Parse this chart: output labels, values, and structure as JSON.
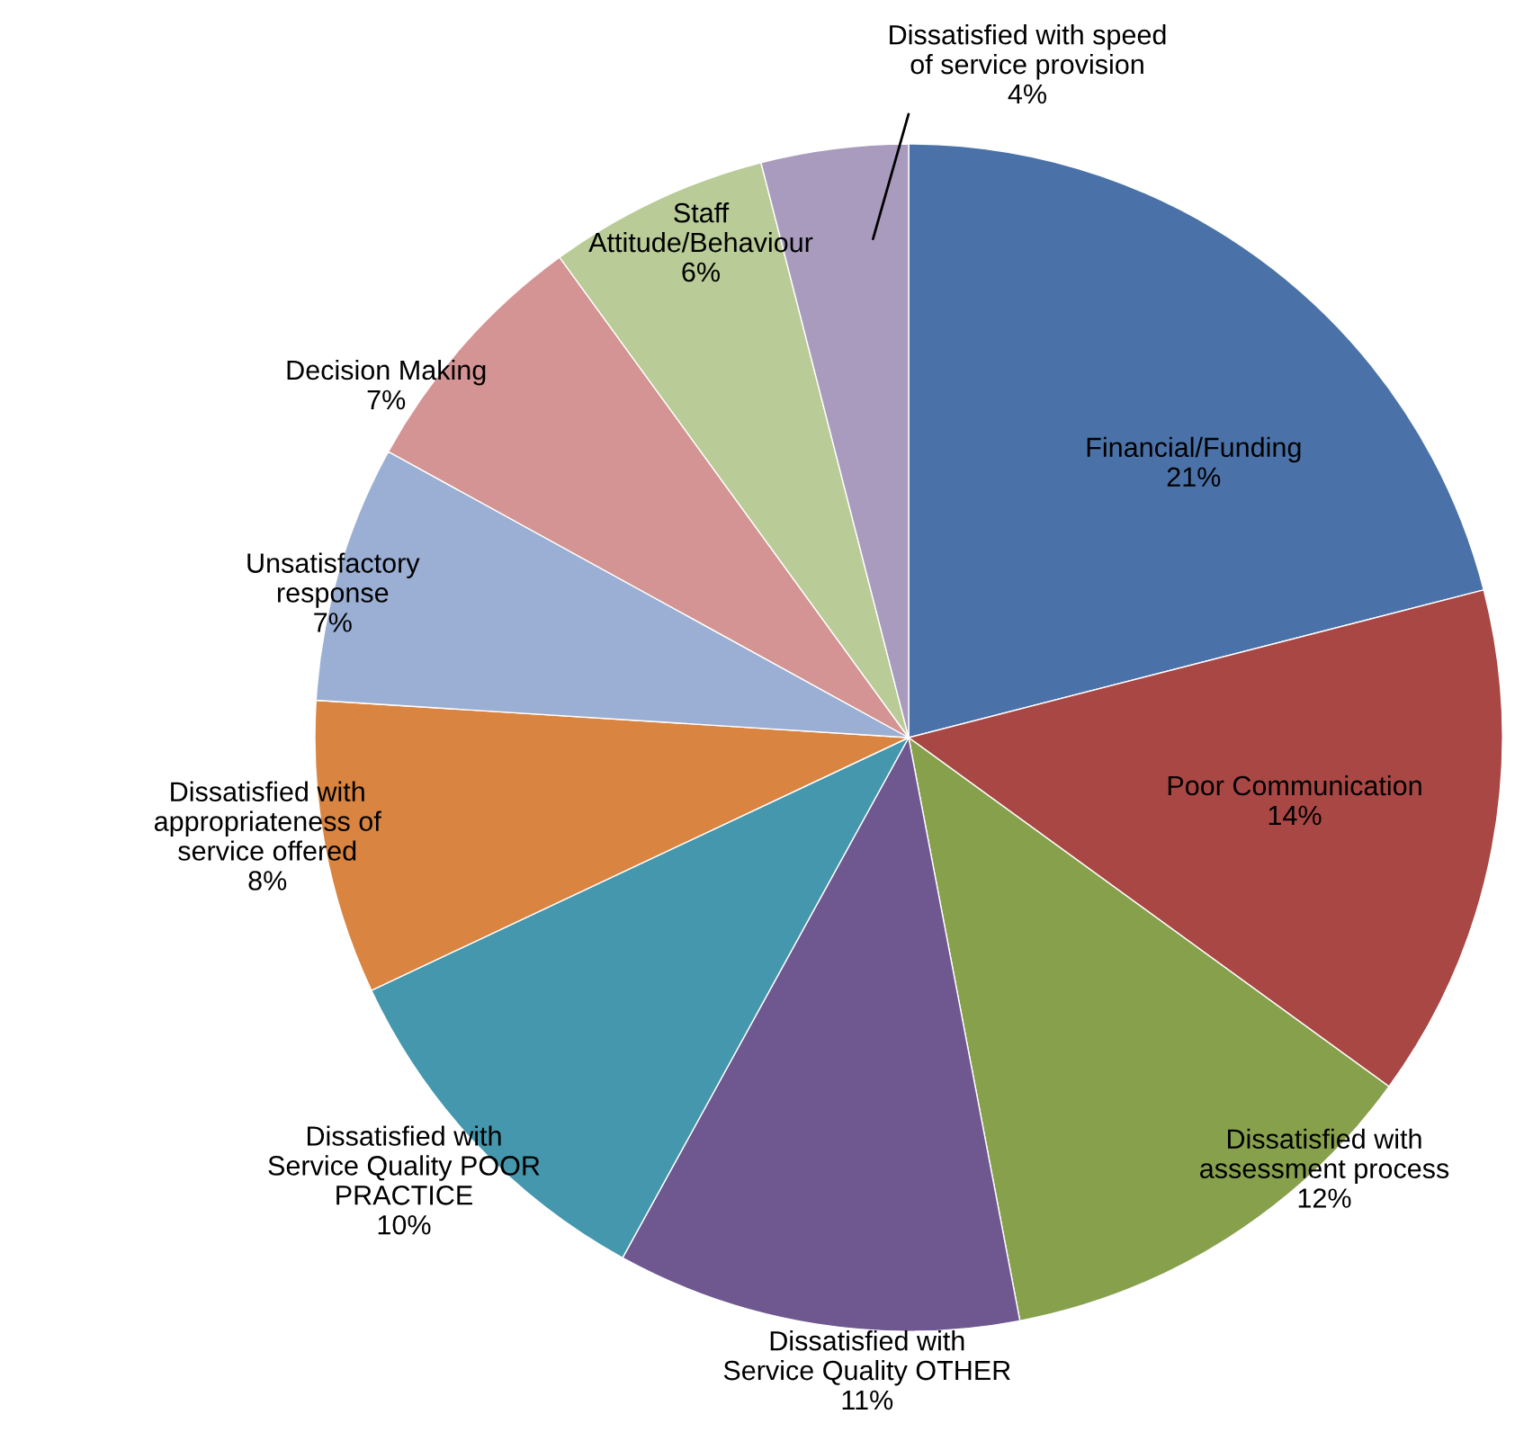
{
  "chart_data": {
    "type": "pie",
    "categories": [
      "Financial/Funding",
      "Poor Communication",
      "Dissatisfied with\nassessment process",
      "Dissatisfied with\nService Quality OTHER",
      "Dissatisfied with\nService Quality POOR\nPRACTICE",
      "Dissatisfied with\nappropriateness of\nservice offered",
      "Unsatisfactory\nresponse",
      "Decision Making",
      "Staff\nAttitude/Behaviour",
      "Dissatisfied with speed\nof service provision"
    ],
    "values": [
      21,
      14,
      12,
      11,
      10,
      8,
      7,
      7,
      6,
      4
    ],
    "value_labels": [
      "21%",
      "14%",
      "12%",
      "11%",
      "10%",
      "8%",
      "7%",
      "7%",
      "6%",
      "4%"
    ],
    "colors": [
      "#4a72a8",
      "#a84744",
      "#87a04c",
      "#6f578f",
      "#4497ad",
      "#d98440",
      "#9aafd3",
      "#d49493",
      "#b9cb97",
      "#a99bbd"
    ]
  }
}
